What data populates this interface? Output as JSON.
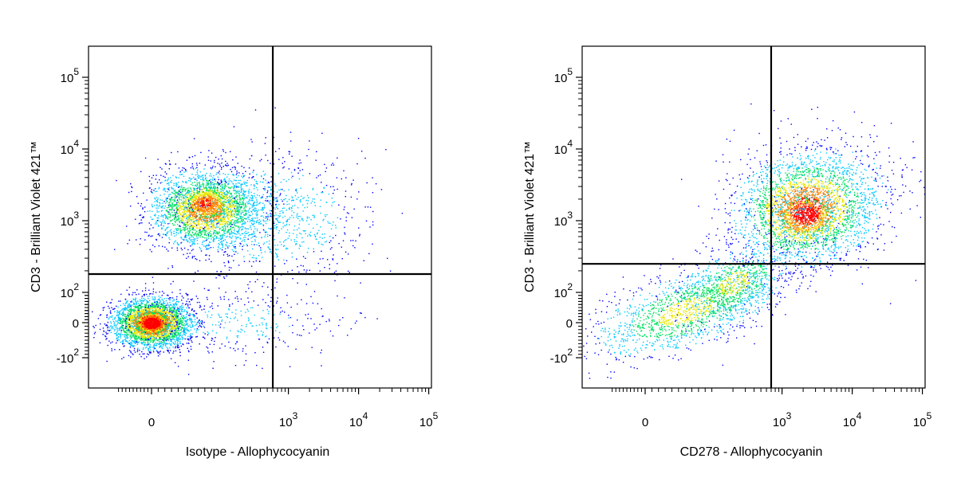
{
  "chart_data": [
    {
      "type": "scatter",
      "subtype": "flow-cytometry-density-dot-plot",
      "xlabel": "Isotype - Allophycocyanin",
      "ylabel": "CD3 - Brilliant Violet 421™",
      "x_scale": "biexponential",
      "y_scale": "biexponential",
      "x_ticks": [
        {
          "value": 0,
          "base": "0",
          "exp": ""
        },
        {
          "value": 1000,
          "base": "10",
          "exp": "3"
        },
        {
          "value": 10000,
          "base": "10",
          "exp": "4"
        },
        {
          "value": 100000,
          "base": "10",
          "exp": "5"
        }
      ],
      "y_ticks": [
        {
          "value": -100,
          "base": "-10",
          "exp": "2"
        },
        {
          "value": 0,
          "base": "0",
          "exp": ""
        },
        {
          "value": 100,
          "base": "10",
          "exp": "2"
        },
        {
          "value": 1000,
          "base": "10",
          "exp": "3"
        },
        {
          "value": 10000,
          "base": "10",
          "exp": "4"
        },
        {
          "value": 100000,
          "base": "10",
          "exp": "5"
        }
      ],
      "quadrant_gate": {
        "x": 600,
        "y": 180
      },
      "populations": [
        {
          "x_center": 0,
          "y_center": 0,
          "relative_density": "highest"
        },
        {
          "x_center": 200,
          "y_center": 1300,
          "relative_density": "high"
        }
      ],
      "grid": false,
      "legend": "none"
    },
    {
      "type": "scatter",
      "subtype": "flow-cytometry-density-dot-plot",
      "xlabel": "CD278 - Allophycocyanin",
      "ylabel": "CD3 - Brilliant Violet 421™",
      "x_scale": "biexponential",
      "y_scale": "biexponential",
      "x_ticks": [
        {
          "value": 0,
          "base": "0",
          "exp": ""
        },
        {
          "value": 1000,
          "base": "10",
          "exp": "3"
        },
        {
          "value": 10000,
          "base": "10",
          "exp": "4"
        },
        {
          "value": 100000,
          "base": "10",
          "exp": "5"
        }
      ],
      "y_ticks": [
        {
          "value": -100,
          "base": "-10",
          "exp": "2"
        },
        {
          "value": 0,
          "base": "0",
          "exp": ""
        },
        {
          "value": 100,
          "base": "10",
          "exp": "2"
        },
        {
          "value": 1000,
          "base": "10",
          "exp": "3"
        },
        {
          "value": 10000,
          "base": "10",
          "exp": "4"
        },
        {
          "value": 100000,
          "base": "10",
          "exp": "5"
        }
      ],
      "quadrant_gate": {
        "x": 700,
        "y": 250
      },
      "populations": [
        {
          "x_center": 60,
          "y_center": 30,
          "relative_density": "medium"
        },
        {
          "x_center": 4500,
          "y_center": 1100,
          "relative_density": "highest"
        }
      ],
      "grid": false,
      "legend": "none"
    }
  ],
  "colors": {
    "density_scale": [
      "#0000ff",
      "#00c8ff",
      "#00e060",
      "#e8e800",
      "#ff8000",
      "#ff0000"
    ],
    "gate_line": "#000000",
    "frame": "#000000"
  }
}
